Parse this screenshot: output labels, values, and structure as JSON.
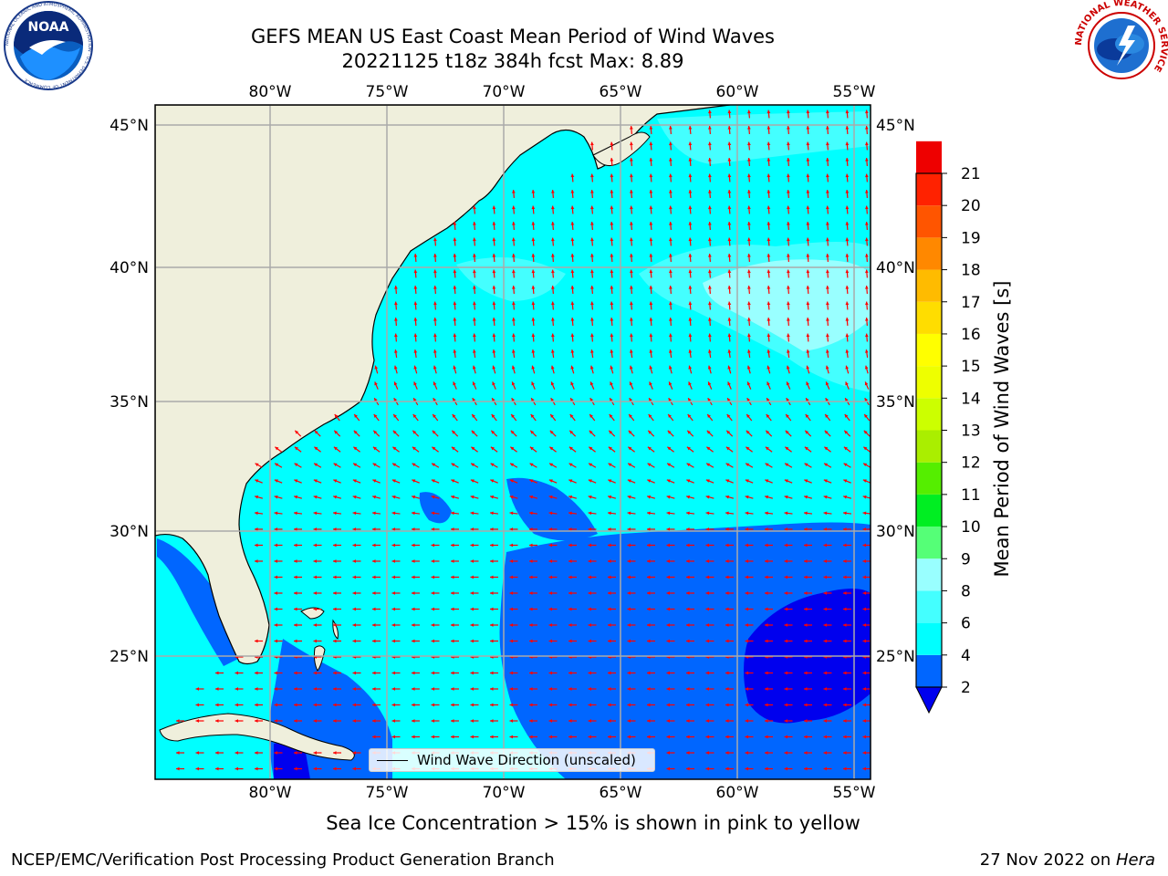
{
  "title_line1": "GEFS MEAN US East Coast Mean Period of Wind Waves",
  "title_line2": "20221125 t18z 384h fcst   Max: 8.89",
  "legend_label": "Wind Wave Direction (unscaled)",
  "ice_note": "Sea Ice Concentration > 15% is shown in pink to yellow",
  "footer_left": "NCEP/EMC/Verification Post Processing Product Generation Branch",
  "footer_right_prefix": "27 Nov 2022 on ",
  "footer_right_host": "Hera",
  "colorbar": {
    "label": "Mean Period of Wind Waves [s]",
    "ticks": [
      "2",
      "4",
      "6",
      "8",
      "9",
      "10",
      "11",
      "12",
      "13",
      "14",
      "15",
      "16",
      "17",
      "18",
      "19",
      "20",
      "21"
    ],
    "colors": [
      "#0066ff",
      "#00ffff",
      "#44ffff",
      "#99ffff",
      "#55ff77",
      "#00ee22",
      "#55ee00",
      "#aaee00",
      "#ccff00",
      "#eeff00",
      "#ffff00",
      "#ffdd00",
      "#ffbb00",
      "#ff8800",
      "#ff5500",
      "#ff2200",
      "#ee0000"
    ],
    "under_color": "#0000ee"
  },
  "map": {
    "lon_labels": [
      "80°W",
      "75°W",
      "70°W",
      "65°W",
      "60°W",
      "55°W"
    ],
    "lat_labels": [
      "45°N",
      "40°N",
      "35°N",
      "30°N",
      "25°N"
    ],
    "land_color": "#efefdc",
    "ocean_color": "#00ffff",
    "arrow_color": "#ff0000",
    "grid_color": "#aaaaaa"
  },
  "logos": {
    "noaa": {
      "icon": "noaa-logo",
      "text": "NOAA",
      "ring": "NATIONAL OCEANIC AND ATMOSPHERIC ADMINISTRATION · U.S. DEPARTMENT OF COMMERCE"
    },
    "nws": {
      "icon": "nws-logo",
      "ring": "NATIONAL WEATHER SERVICE"
    }
  }
}
